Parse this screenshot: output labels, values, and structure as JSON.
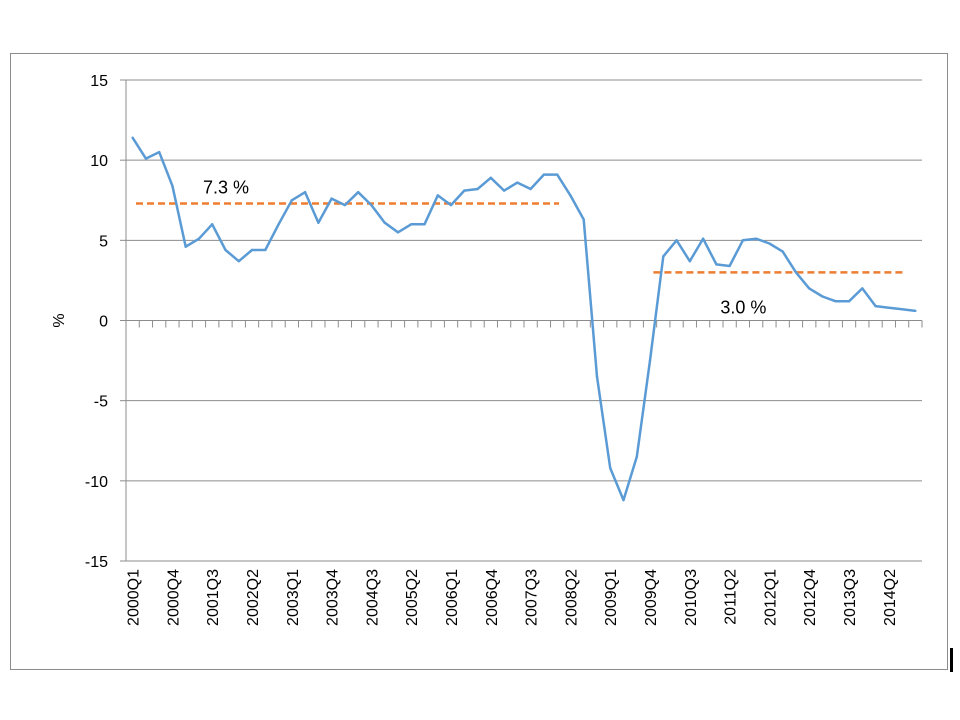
{
  "chart_data": {
    "type": "line",
    "title": "",
    "xlabel": "",
    "ylabel": "%",
    "ylim": [
      -15,
      15
    ],
    "yticks": [
      15,
      10,
      5,
      0,
      -5,
      -10,
      -15
    ],
    "grid": true,
    "legend": "none",
    "categories": [
      "2000Q1",
      "2000Q2",
      "2000Q3",
      "2000Q4",
      "2001Q1",
      "2001Q2",
      "2001Q3",
      "2001Q4",
      "2002Q1",
      "2002Q2",
      "2002Q3",
      "2002Q4",
      "2003Q1",
      "2003Q2",
      "2003Q3",
      "2003Q4",
      "2004Q1",
      "2004Q2",
      "2004Q3",
      "2004Q4",
      "2005Q1",
      "2005Q2",
      "2005Q3",
      "2005Q4",
      "2006Q1",
      "2006Q2",
      "2006Q3",
      "2006Q4",
      "2007Q1",
      "2007Q2",
      "2007Q3",
      "2007Q4",
      "2008Q1",
      "2008Q2",
      "2008Q3",
      "2008Q4",
      "2009Q1",
      "2009Q2",
      "2009Q3",
      "2009Q4",
      "2010Q1",
      "2010Q2",
      "2010Q3",
      "2010Q4",
      "2011Q1",
      "2011Q2",
      "2011Q3",
      "2011Q4",
      "2012Q1",
      "2012Q2",
      "2012Q3",
      "2012Q4",
      "2013Q1",
      "2013Q2",
      "2013Q3",
      "2013Q4",
      "2014Q1",
      "2014Q2",
      "2014Q3",
      "2014Q4"
    ],
    "visible_tick_labels": [
      "2000Q1",
      "2000Q4",
      "2001Q3",
      "2002Q2",
      "2003Q1",
      "2003Q4",
      "2004Q3",
      "2005Q2",
      "2006Q1",
      "2006Q4",
      "2007Q3",
      "2008Q2",
      "2009Q1",
      "2009Q4",
      "2010Q3",
      "2011Q2",
      "2012Q1",
      "2012Q4",
      "2013Q3",
      "2014Q2"
    ],
    "series": [
      {
        "color": "#5b9bd5",
        "values": [
          11.4,
          10.1,
          10.5,
          8.4,
          4.6,
          5.1,
          6.0,
          4.4,
          3.7,
          4.4,
          4.4,
          6.0,
          7.5,
          8.0,
          6.1,
          7.6,
          7.2,
          8.0,
          7.2,
          6.1,
          5.5,
          6.0,
          6.0,
          7.8,
          7.2,
          8.1,
          8.2,
          8.9,
          8.1,
          8.6,
          8.2,
          9.1,
          9.1,
          7.8,
          6.3,
          -3.5,
          -9.2,
          -11.2,
          -8.5,
          -2.5,
          4.0,
          5.0,
          3.7,
          5.1,
          3.5,
          3.4,
          5.0,
          5.1,
          4.8,
          4.3,
          3.0,
          2.0,
          1.5,
          1.2,
          1.2,
          2.0,
          0.9,
          0.8,
          0.7,
          0.6
        ]
      }
    ],
    "reference_lines": [
      {
        "label": "7.3 %",
        "value": 7.3,
        "from": "2000Q1",
        "to": "2008Q2",
        "color": "#ed7d31",
        "style": "dashed"
      },
      {
        "label": "3.0 %",
        "value": 3.0,
        "from": "2009Q4",
        "to": "2014Q4",
        "color": "#ed7d31",
        "style": "dashed"
      }
    ]
  }
}
